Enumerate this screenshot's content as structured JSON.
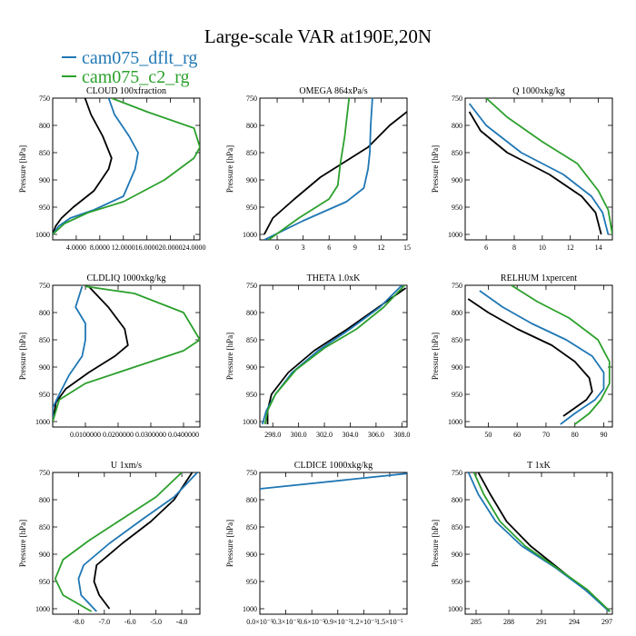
{
  "figure_title": "Large-scale VAR at190E,20N",
  "legend": [
    {
      "label": "cam075_dflt_rg",
      "color": "#1f77b4"
    },
    {
      "label": "cam075_c2_rg",
      "color": "#2ca02c"
    }
  ],
  "colors": {
    "black": "#000000",
    "blue": "#1f77b4",
    "green": "#2ca02c"
  },
  "chart_data": [
    {
      "type": "line",
      "title": "CLOUD  100xfraction",
      "ylabel": "Pressure [hPa]",
      "xlim": [
        0.0,
        25.0
      ],
      "ylim": [
        1010,
        750
      ],
      "xticks": [
        4.0,
        8.0,
        12.0,
        16.0,
        20.0,
        24.0
      ],
      "xticklabels": [
        "4.0000",
        "8.0000",
        "12.0000",
        "16.0000",
        "20.0000",
        "24.0000"
      ],
      "yticks": [
        750,
        800,
        850,
        900,
        950,
        1000
      ],
      "series": [
        {
          "name": "black",
          "x": [
            5.5,
            6.5,
            8.5,
            10.0,
            9.5,
            7.0,
            3.5,
            1.5,
            0.5,
            0.0
          ],
          "y": [
            750,
            780,
            820,
            860,
            880,
            920,
            950,
            970,
            985,
            1000
          ]
        },
        {
          "name": "cam075_dflt_rg",
          "x": [
            9.5,
            10.5,
            13.0,
            14.5,
            14.0,
            12.0,
            7.0,
            3.0,
            1.0,
            0.0
          ],
          "y": [
            750,
            780,
            820,
            850,
            880,
            930,
            955,
            970,
            985,
            1000
          ]
        },
        {
          "name": "cam075_c2_rg",
          "x": [
            10.0,
            16.0,
            24.0,
            25.0,
            24.0,
            19.0,
            12.0,
            6.0,
            2.0,
            0.0
          ],
          "y": [
            750,
            775,
            805,
            840,
            860,
            900,
            940,
            960,
            980,
            1000
          ]
        }
      ]
    },
    {
      "type": "line",
      "title": "OMEGA  864xPa/s",
      "ylabel": "Pressure [hPa]",
      "xlim": [
        -2.0,
        15.0
      ],
      "ylim": [
        1010,
        750
      ],
      "xticks": [
        0,
        3,
        6,
        9,
        12,
        15
      ],
      "xticklabels": [
        "0",
        "3",
        "6",
        "9",
        "12",
        "15"
      ],
      "yticks": [
        750,
        800,
        850,
        900,
        950,
        1000
      ],
      "series": [
        {
          "name": "black",
          "x": [
            -1.5,
            -0.5,
            2.0,
            5.0,
            8.0,
            10.5,
            13.0,
            15.0
          ],
          "y": [
            1000,
            970,
            935,
            895,
            865,
            840,
            800,
            775
          ]
        },
        {
          "name": "cam075_dflt_rg",
          "x": [
            -1.5,
            3.0,
            8.0,
            10.0,
            10.5,
            10.7,
            10.8,
            11.0
          ],
          "y": [
            1010,
            975,
            940,
            915,
            880,
            850,
            800,
            750
          ]
        },
        {
          "name": "cam075_c2_rg",
          "x": [
            -1.0,
            2.5,
            6.0,
            7.0,
            7.3,
            7.8,
            8.3
          ],
          "y": [
            1010,
            970,
            935,
            910,
            870,
            820,
            750
          ]
        }
      ]
    },
    {
      "type": "line",
      "title": "Q  1000xkg/kg",
      "ylabel": "Pressure [hPa]",
      "xlim": [
        4.5,
        15.0
      ],
      "ylim": [
        1010,
        750
      ],
      "xticks": [
        6,
        8,
        10,
        12,
        14
      ],
      "xticklabels": [
        "6",
        "8",
        "10",
        "12",
        "14"
      ],
      "yticks": [
        750,
        800,
        850,
        900,
        950,
        1000
      ],
      "series": [
        {
          "name": "black",
          "x": [
            4.8,
            5.6,
            7.5,
            10.5,
            12.8,
            13.8,
            14.2
          ],
          "y": [
            775,
            810,
            850,
            890,
            930,
            960,
            1000
          ]
        },
        {
          "name": "cam075_dflt_rg",
          "x": [
            4.8,
            6.0,
            8.5,
            11.5,
            13.5,
            14.3,
            14.7
          ],
          "y": [
            760,
            800,
            850,
            890,
            930,
            960,
            1000
          ]
        },
        {
          "name": "cam075_c2_rg",
          "x": [
            6.0,
            7.5,
            10.0,
            12.5,
            14.0,
            14.7,
            15.0
          ],
          "y": [
            750,
            785,
            830,
            870,
            920,
            955,
            1000
          ]
        }
      ]
    },
    {
      "type": "line",
      "title": "CLDLIQ  1000xkg/kg",
      "ylabel": "Pressure [hPa]",
      "xlim": [
        0.0,
        0.045
      ],
      "ylim": [
        1010,
        750
      ],
      "xticks": [
        0.01,
        0.02,
        0.03,
        0.04
      ],
      "xticklabels": [
        "0.0100000",
        "0.0200000",
        "0.0300000",
        "0.0400000"
      ],
      "yticks": [
        750,
        800,
        850,
        900,
        950,
        1000
      ],
      "series": [
        {
          "name": "black",
          "x": [
            0.011,
            0.017,
            0.022,
            0.023,
            0.019,
            0.011,
            0.004,
            0.001,
            0.0
          ],
          "y": [
            752,
            790,
            830,
            860,
            880,
            910,
            940,
            965,
            1000
          ]
        },
        {
          "name": "cam075_dflt_rg",
          "x": [
            0.009,
            0.007,
            0.01,
            0.01,
            0.009,
            0.005,
            0.002,
            0.0,
            0.0
          ],
          "y": [
            752,
            790,
            820,
            850,
            880,
            915,
            950,
            975,
            1000
          ]
        },
        {
          "name": "cam075_c2_rg",
          "x": [
            0.01,
            0.025,
            0.04,
            0.045,
            0.04,
            0.025,
            0.01,
            0.002,
            0.0
          ],
          "y": [
            752,
            765,
            800,
            850,
            870,
            900,
            930,
            960,
            1000
          ]
        }
      ]
    },
    {
      "type": "line",
      "title": "THETA  1.0xK",
      "ylabel": "Pressure [hPa]",
      "xlim": [
        297.0,
        308.4
      ],
      "ylim": [
        1010,
        750
      ],
      "xticks": [
        298,
        300,
        302,
        304,
        306,
        308
      ],
      "xticklabels": [
        "298.0",
        "300.0",
        "302.0",
        "304.0",
        "306.0",
        "308.0"
      ],
      "yticks": [
        750,
        800,
        850,
        900,
        950,
        1000
      ],
      "series": [
        {
          "name": "black",
          "x": [
            297.6,
            297.6,
            297.9,
            299.2,
            301.2,
            303.8,
            306.2,
            308.3
          ],
          "y": [
            1005,
            980,
            950,
            910,
            870,
            830,
            790,
            755
          ]
        },
        {
          "name": "cam075_dflt_rg",
          "x": [
            297.2,
            297.5,
            298.2,
            299.5,
            301.5,
            304.0,
            306.3,
            308.0
          ],
          "y": [
            1005,
            980,
            950,
            910,
            870,
            830,
            790,
            750
          ]
        },
        {
          "name": "cam075_c2_rg",
          "x": [
            297.4,
            297.6,
            298.2,
            299.8,
            302.0,
            304.5,
            306.6,
            308.2
          ],
          "y": [
            1005,
            980,
            950,
            905,
            865,
            830,
            790,
            750
          ]
        }
      ]
    },
    {
      "type": "line",
      "title": "RELHUM  1xpercent",
      "ylabel": "Pressure [hPa]",
      "xlim": [
        42.0,
        93.0
      ],
      "ylim": [
        1010,
        750
      ],
      "xticks": [
        50,
        60,
        70,
        80,
        90
      ],
      "xticklabels": [
        "50",
        "60",
        "70",
        "80",
        "90"
      ],
      "yticks": [
        750,
        800,
        850,
        900,
        950,
        1000
      ],
      "series": [
        {
          "name": "black",
          "x": [
            43.0,
            50.0,
            60.0,
            72.0,
            80.0,
            85.0,
            86.0,
            84.0,
            80.0,
            76.0
          ],
          "y": [
            775,
            800,
            830,
            860,
            890,
            920,
            945,
            960,
            975,
            990
          ]
        },
        {
          "name": "cam075_dflt_rg",
          "x": [
            47.0,
            55.0,
            65.0,
            77.0,
            86.0,
            90.0,
            90.0,
            87.0,
            80.0,
            75.0
          ],
          "y": [
            760,
            790,
            820,
            850,
            880,
            910,
            940,
            960,
            985,
            1005
          ]
        },
        {
          "name": "cam075_c2_rg",
          "x": [
            58.0,
            67.0,
            78.0,
            88.0,
            92.0,
            92.0,
            89.0,
            85.0,
            80.0
          ],
          "y": [
            750,
            780,
            810,
            850,
            890,
            930,
            960,
            985,
            1005
          ]
        }
      ]
    },
    {
      "type": "line",
      "title": "U  1xm/s",
      "ylabel": "Pressure [hPa]",
      "xlim": [
        -9.0,
        -3.3
      ],
      "ylim": [
        1010,
        750
      ],
      "xticks": [
        -8.0,
        -7.0,
        -6.0,
        -5.0,
        -4.0
      ],
      "xticklabels": [
        "-8.0",
        "-7.0",
        "-6.0",
        "-5.0",
        "-4.0"
      ],
      "yticks": [
        750,
        800,
        850,
        900,
        950,
        1000
      ],
      "series": [
        {
          "name": "black",
          "x": [
            -6.8,
            -7.2,
            -7.4,
            -7.3,
            -6.3,
            -5.2,
            -4.3,
            -3.6
          ],
          "y": [
            1000,
            975,
            950,
            920,
            880,
            840,
            800,
            750
          ]
        },
        {
          "name": "cam075_dflt_rg",
          "x": [
            -7.3,
            -7.9,
            -8.0,
            -7.8,
            -6.8,
            -5.5,
            -4.3,
            -3.4
          ],
          "y": [
            1005,
            975,
            945,
            920,
            880,
            835,
            795,
            750
          ]
        },
        {
          "name": "cam075_c2_rg",
          "x": [
            -7.5,
            -8.6,
            -8.9,
            -8.6,
            -7.6,
            -6.3,
            -5.0,
            -4.0
          ],
          "y": [
            1005,
            975,
            945,
            910,
            875,
            835,
            795,
            750
          ]
        }
      ]
    },
    {
      "type": "line",
      "title": "CLDICE  1000xkg/kg",
      "ylabel": "Pressure [hPa]",
      "xlim": [
        0.0,
        1.7e-05
      ],
      "ylim": [
        1010,
        750
      ],
      "xticks": [
        0.0,
        3e-06,
        6e-06,
        9e-06,
        1.2e-05,
        1.5e-05
      ],
      "xticklabels": [
        "0.0×10⁻⁵",
        "0.3×10⁻⁵",
        "0.6×10⁻⁵",
        "0.9×10⁻⁵",
        "1.2×10⁻⁵",
        "1.5×10⁻⁵"
      ],
      "yticks": [
        750,
        800,
        850,
        900,
        950,
        1000
      ],
      "series": [
        {
          "name": "cam075_dflt_rg",
          "x": [
            0.0,
            1.7e-05
          ],
          "y": [
            780,
            752
          ]
        }
      ]
    },
    {
      "type": "line",
      "title": "T  1xK",
      "ylabel": "Pressure [hPa]",
      "xlim": [
        284.0,
        297.5
      ],
      "ylim": [
        1010,
        750
      ],
      "xticks": [
        285,
        288,
        291,
        294,
        297
      ],
      "xticklabels": [
        "285",
        "288",
        "291",
        "294",
        "297"
      ],
      "yticks": [
        750,
        800,
        850,
        900,
        950,
        1000
      ],
      "series": [
        {
          "name": "black",
          "x": [
            285.2,
            286.3,
            287.8,
            290.0,
            292.5,
            295.0,
            297.0
          ],
          "y": [
            750,
            790,
            840,
            885,
            925,
            965,
            1000
          ]
        },
        {
          "name": "cam075_dflt_rg",
          "x": [
            284.3,
            285.2,
            286.8,
            289.2,
            292.3,
            295.0,
            297.2
          ],
          "y": [
            750,
            790,
            840,
            885,
            925,
            965,
            1005
          ]
        },
        {
          "name": "cam075_c2_rg",
          "x": [
            284.8,
            285.7,
            287.2,
            289.5,
            292.4,
            295.2,
            297.3
          ],
          "y": [
            750,
            790,
            840,
            885,
            925,
            965,
            1005
          ]
        }
      ]
    }
  ]
}
